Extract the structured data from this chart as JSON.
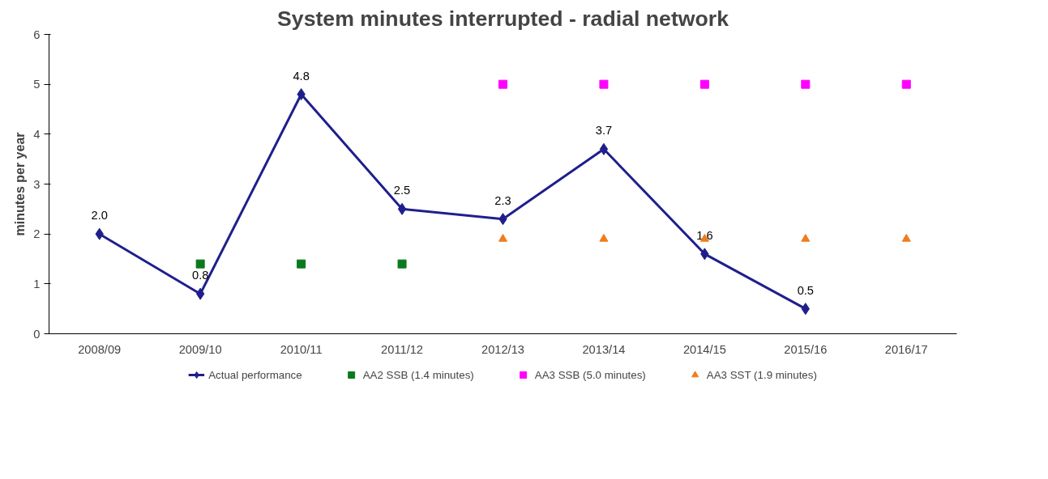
{
  "chart_data": {
    "type": "line",
    "title": "System minutes interrupted - radial network",
    "ylabel": "minutes per year",
    "categories": [
      "2008/09",
      "2009/10",
      "2010/11",
      "2011/12",
      "2012/13",
      "2013/14",
      "2014/15",
      "2015/16",
      "2016/17"
    ],
    "ylim": [
      0,
      6
    ],
    "yticks": [
      0,
      1,
      2,
      3,
      4,
      5,
      6
    ],
    "grid": false,
    "legend": "bottom",
    "series": [
      {
        "name": "Actual performance",
        "marker": "diamond",
        "color": "#1f1f8c",
        "values": [
          2.0,
          0.8,
          4.8,
          2.5,
          2.3,
          3.7,
          1.6,
          0.5,
          null
        ],
        "value_labels": [
          "2.0",
          "0.8",
          "4.8",
          "2.5",
          "2.3",
          "3.7",
          "1.6",
          "0.5",
          null
        ]
      },
      {
        "name": "AA2 SSB (1.4 minutes)",
        "type": "scatter",
        "marker": "square",
        "color": "#0a7a1e",
        "values": [
          null,
          1.4,
          1.4,
          1.4,
          null,
          null,
          null,
          null,
          null
        ]
      },
      {
        "name": "AA3 SSB (5.0 minutes)",
        "type": "scatter",
        "marker": "square",
        "color": "#ff00ff",
        "values": [
          null,
          null,
          null,
          null,
          5.0,
          5.0,
          5.0,
          5.0,
          5.0
        ]
      },
      {
        "name": "AA3 SST (1.9 minutes)",
        "type": "scatter",
        "marker": "triangle",
        "color": "#f07c1a",
        "values": [
          null,
          null,
          null,
          null,
          1.9,
          1.9,
          1.9,
          1.9,
          1.9
        ]
      }
    ]
  }
}
